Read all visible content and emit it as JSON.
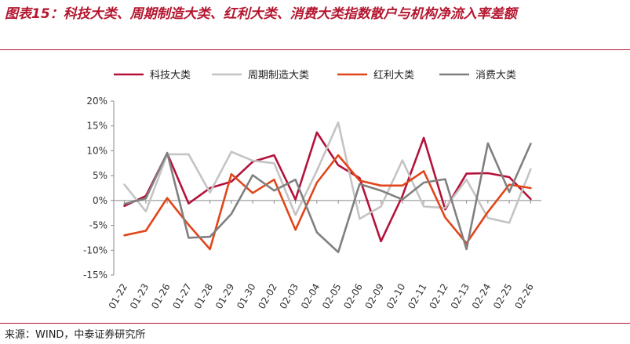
{
  "title": "图表15：科技大类、周期制造大类、红利大类、消费大类指数散户与机构净流入率差额",
  "source": "来源：WIND，中泰证券研究所",
  "chart_data": {
    "type": "line",
    "categories": [
      "01-22",
      "01-23",
      "01-26",
      "01-27",
      "01-28",
      "01-29",
      "01-30",
      "02-02",
      "02-03",
      "02-04",
      "02-05",
      "02-06",
      "02-09",
      "02-10",
      "02-11",
      "02-12",
      "02-13",
      "02-24",
      "02-25",
      "02-26"
    ],
    "ylim": [
      -0.15,
      0.2
    ],
    "yticks": [
      -0.15,
      -0.1,
      -0.05,
      0,
      0.05,
      0.1,
      0.15,
      0.2
    ],
    "ytick_labels": [
      "-15%",
      "-10%",
      "-5%",
      "0%",
      "5%",
      "10%",
      "15%",
      "20%"
    ],
    "legend_position": "top",
    "series": [
      {
        "name": "科技大类",
        "color": "#b5123a",
        "values": [
          -0.011,
          0.009,
          0.095,
          -0.006,
          0.025,
          0.038,
          0.078,
          0.091,
          0.002,
          0.137,
          0.071,
          0.045,
          -0.082,
          0.009,
          0.126,
          -0.018,
          0.054,
          0.055,
          0.047,
          0.003
        ]
      },
      {
        "name": "周期制造大类",
        "color": "#c4c4c4",
        "values": [
          0.032,
          -0.022,
          0.093,
          0.093,
          0.016,
          0.098,
          0.08,
          0.075,
          -0.029,
          0.06,
          0.157,
          -0.037,
          -0.012,
          0.081,
          -0.012,
          -0.015,
          0.042,
          -0.035,
          -0.045,
          0.063
        ]
      },
      {
        "name": "红利大类",
        "color": "#e0461a",
        "values": [
          -0.07,
          -0.061,
          0.005,
          -0.049,
          -0.098,
          0.053,
          0.015,
          0.042,
          -0.059,
          0.036,
          0.091,
          0.04,
          0.03,
          0.03,
          0.059,
          -0.034,
          -0.086,
          -0.023,
          0.032,
          0.025
        ]
      },
      {
        "name": "消费大类",
        "color": "#808080",
        "values": [
          -0.007,
          0.004,
          0.096,
          -0.075,
          -0.073,
          -0.027,
          0.051,
          0.02,
          0.042,
          -0.064,
          -0.104,
          0.033,
          0.02,
          0.002,
          0.036,
          0.043,
          -0.098,
          0.115,
          0.017,
          0.114
        ]
      }
    ]
  }
}
